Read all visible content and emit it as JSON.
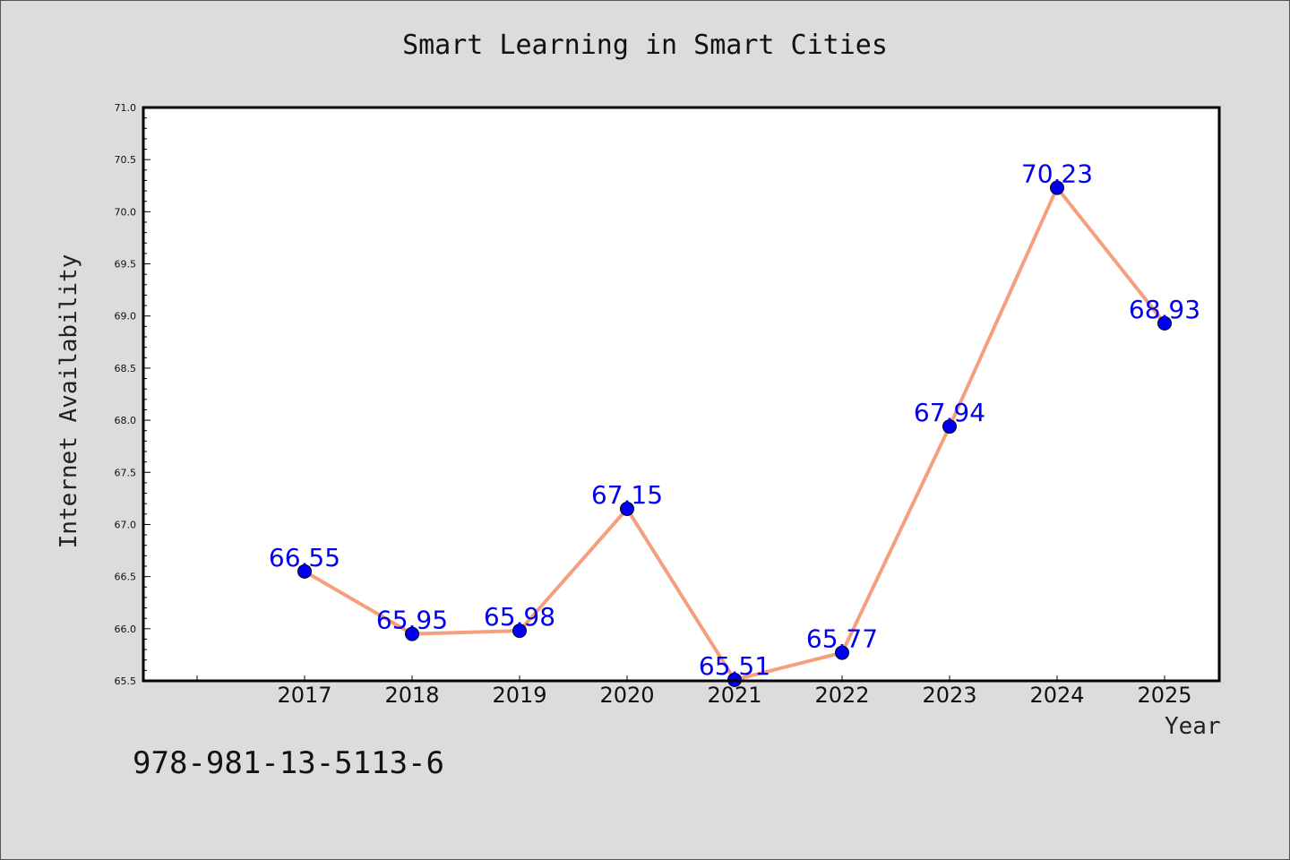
{
  "chart_data": {
    "type": "line",
    "title": "Smart Learning in Smart Cities",
    "xlabel": "Year",
    "ylabel": "Internet Availability",
    "categories": [
      "2017",
      "2018",
      "2019",
      "2020",
      "2021",
      "2022",
      "2023",
      "2024",
      "2025"
    ],
    "series": [
      {
        "values": [
          66.55,
          65.95,
          65.98,
          67.15,
          65.51,
          65.77,
          67.94,
          70.23,
          68.93
        ],
        "data_labels": [
          "66.55",
          "65.95",
          "65.98",
          "67.15",
          "65.51",
          "65.77",
          "67.94",
          "70.23",
          "68.93"
        ]
      }
    ],
    "ylim": [
      65.5,
      71.0
    ],
    "y_ticks": [
      "65.5",
      "66.0",
      "66.5",
      "67.0",
      "67.5",
      "68.0",
      "68.5",
      "69.0",
      "69.5",
      "70.0",
      "70.5",
      "71.0"
    ],
    "grid": false,
    "colors": {
      "line": "#f4a07e",
      "marker": "#0000ee",
      "data_label": "#0000ee",
      "plot_bg": "#ffffff",
      "figure_bg": "#dcdcdc"
    }
  },
  "footer": {
    "isbn": "978-981-13-5113-6"
  }
}
